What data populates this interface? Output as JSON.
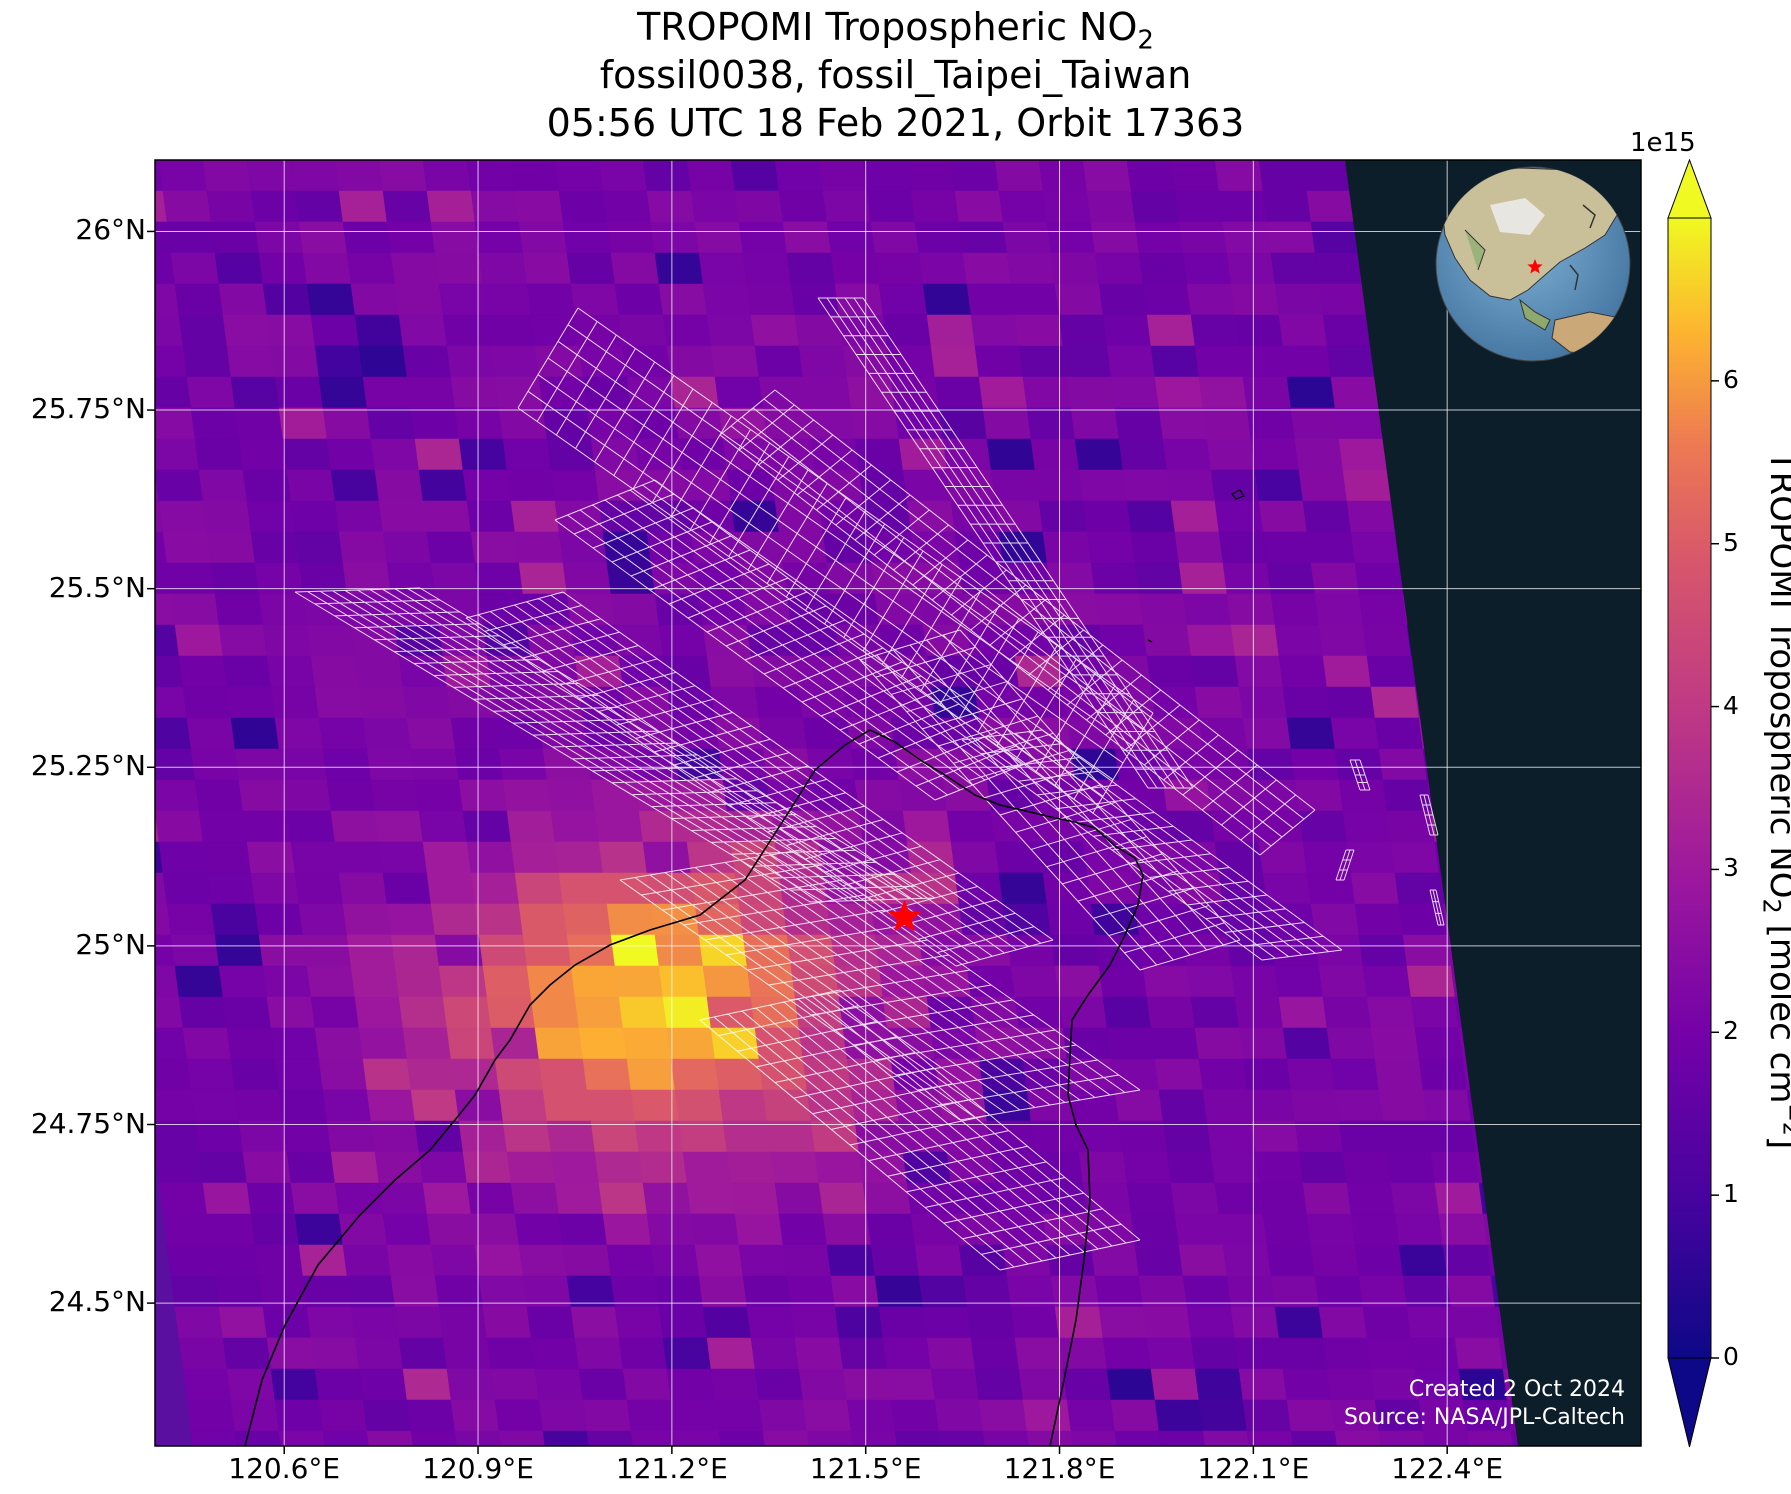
{
  "title": {
    "line1": "TROPOMI Tropospheric NO",
    "line1_sub": "2",
    "line2": "fossil0038, fossil_Taipei_Taiwan",
    "line3": "05:56 UTC 18 Feb 2021, Orbit 17363"
  },
  "map": {
    "lon_range": [
      120.4,
      122.7
    ],
    "lat_range": [
      24.3,
      26.1
    ],
    "lon_ticks": [
      "120.6°E",
      "120.9°E",
      "121.2°E",
      "121.5°E",
      "121.8°E",
      "122.1°E",
      "122.4°E"
    ],
    "lat_ticks": [
      "26°N",
      "25.75°N",
      "25.5°N",
      "25.25°N",
      "25°N",
      "24.75°N",
      "24.5°N"
    ],
    "grid": true,
    "target_marker": {
      "lon": 121.56,
      "lat": 25.04,
      "symbol": "star",
      "color": "#ff0000"
    },
    "inset_globe": "globe-icon"
  },
  "colorbar": {
    "label": "TROPOMI Tropospheric NO",
    "label_sub": "2",
    "label_unit": " [molec cm",
    "label_sup": "−2",
    "label_end": "]",
    "exponent": "1e15",
    "min": 0,
    "max": 7,
    "ticks": [
      "0",
      "1",
      "2",
      "3",
      "4",
      "5",
      "6"
    ],
    "colormap": "plasma"
  },
  "credits": {
    "created": "Created 2 Oct 2024",
    "source": "Source: NASA/JPL-Caltech"
  },
  "colors": {
    "background": "#5a0fa0",
    "no_data": "#0c1e2a",
    "grid": "#ffffff",
    "coast": "#000000",
    "overlay": "#ffffff"
  }
}
